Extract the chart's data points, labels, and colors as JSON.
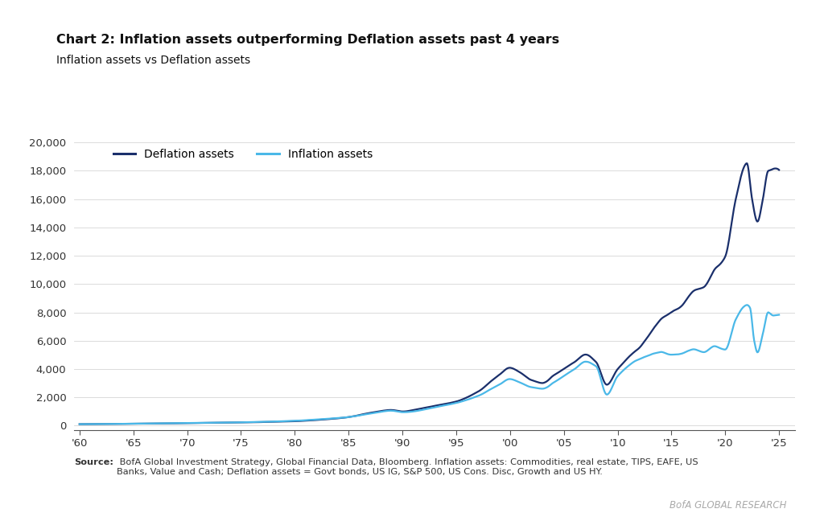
{
  "title": "Chart 2: Inflation assets outperforming Deflation assets past 4 years",
  "subtitle": "Inflation assets vs Deflation assets",
  "source_bold": "Source:",
  "source_rest": " BofA Global Investment Strategy, Global Financial Data, Bloomberg. Inflation assets: Commodities, real estate, TIPS, EAFE, US\nBanks, Value and Cash; Deflation assets = Govt bonds, US IG, S&P 500, US Cons. Disc, Growth and US HY.",
  "branding": "BofA GLOBAL RESEARCH",
  "deflation_color": "#1a2f6b",
  "inflation_color": "#4ab8e8",
  "background_color": "#ffffff",
  "title_color": "#111111",
  "left_bar_color": "#1f4ea0",
  "ylabel_values": [
    0,
    2000,
    4000,
    6000,
    8000,
    10000,
    12000,
    14000,
    16000,
    18000,
    20000
  ],
  "xlim_start": 1959.5,
  "xlim_end": 2026.5,
  "ylim_min": -300,
  "ylim_max": 20500,
  "xtick_years": [
    1960,
    1965,
    1970,
    1975,
    1980,
    1985,
    1990,
    1995,
    2000,
    2005,
    2010,
    2015,
    2020,
    2025
  ],
  "xtick_labels": [
    "'60",
    "'65",
    "'70",
    "'75",
    "'80",
    "'85",
    "'90",
    "'95",
    "'00",
    "'05",
    "'10",
    "'15",
    "'20",
    "'25"
  ],
  "defl_keypoints": [
    [
      1960,
      100
    ],
    [
      1965,
      130
    ],
    [
      1970,
      170
    ],
    [
      1975,
      220
    ],
    [
      1980,
      310
    ],
    [
      1983,
      450
    ],
    [
      1985,
      600
    ],
    [
      1987,
      900
    ],
    [
      1989,
      1100
    ],
    [
      1990,
      1000
    ],
    [
      1991,
      1100
    ],
    [
      1993,
      1400
    ],
    [
      1995,
      1700
    ],
    [
      1997,
      2400
    ],
    [
      1999,
      3600
    ],
    [
      2000,
      4100
    ],
    [
      2001,
      3700
    ],
    [
      2002,
      3200
    ],
    [
      2003,
      3000
    ],
    [
      2004,
      3500
    ],
    [
      2005,
      4000
    ],
    [
      2006,
      4500
    ],
    [
      2007,
      5000
    ],
    [
      2008,
      4500
    ],
    [
      2009,
      2900
    ],
    [
      2010,
      4000
    ],
    [
      2011,
      4800
    ],
    [
      2012,
      5500
    ],
    [
      2013,
      6500
    ],
    [
      2014,
      7500
    ],
    [
      2015,
      8000
    ],
    [
      2016,
      8500
    ],
    [
      2017,
      9500
    ],
    [
      2018,
      9800
    ],
    [
      2019,
      11000
    ],
    [
      2020,
      12000
    ],
    [
      2021,
      16000
    ],
    [
      2022,
      18500
    ],
    [
      2022.5,
      16000
    ],
    [
      2023,
      14500
    ],
    [
      2023.5,
      16000
    ],
    [
      2024,
      18000
    ],
    [
      2024.5,
      18200
    ],
    [
      2025,
      18000
    ]
  ],
  "infl_keypoints": [
    [
      1960,
      100
    ],
    [
      1965,
      130
    ],
    [
      1970,
      175
    ],
    [
      1975,
      230
    ],
    [
      1980,
      340
    ],
    [
      1983,
      480
    ],
    [
      1985,
      600
    ],
    [
      1987,
      850
    ],
    [
      1989,
      1050
    ],
    [
      1990,
      950
    ],
    [
      1991,
      1000
    ],
    [
      1993,
      1300
    ],
    [
      1995,
      1600
    ],
    [
      1997,
      2100
    ],
    [
      1999,
      2900
    ],
    [
      2000,
      3300
    ],
    [
      2001,
      3000
    ],
    [
      2002,
      2700
    ],
    [
      2003,
      2600
    ],
    [
      2004,
      3000
    ],
    [
      2005,
      3500
    ],
    [
      2006,
      4000
    ],
    [
      2007,
      4500
    ],
    [
      2008,
      4200
    ],
    [
      2009,
      2200
    ],
    [
      2010,
      3500
    ],
    [
      2011,
      4200
    ],
    [
      2012,
      4700
    ],
    [
      2013,
      5000
    ],
    [
      2014,
      5200
    ],
    [
      2015,
      5000
    ],
    [
      2016,
      5100
    ],
    [
      2017,
      5400
    ],
    [
      2018,
      5200
    ],
    [
      2019,
      5600
    ],
    [
      2020,
      5400
    ],
    [
      2021,
      7500
    ],
    [
      2022,
      8500
    ],
    [
      2022.3,
      8300
    ],
    [
      2022.7,
      6000
    ],
    [
      2023,
      5200
    ],
    [
      2023.5,
      6500
    ],
    [
      2024,
      8000
    ],
    [
      2024.5,
      7800
    ],
    [
      2025,
      7800
    ]
  ]
}
